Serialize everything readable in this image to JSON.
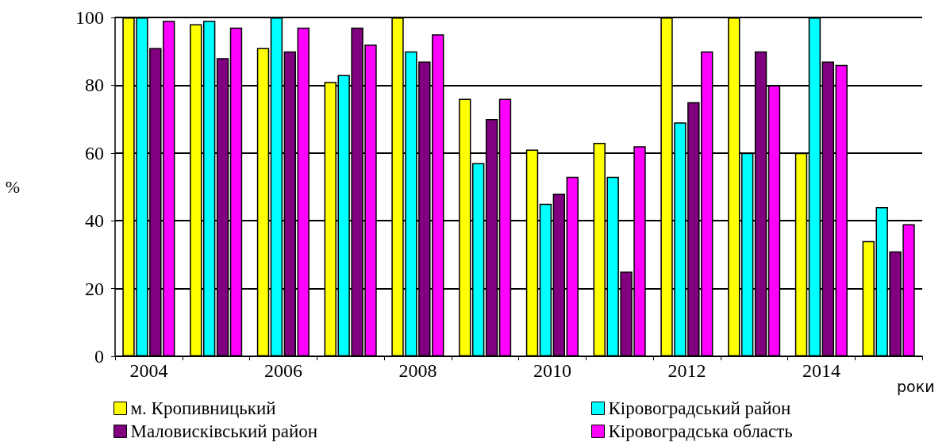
{
  "chart_data": {
    "type": "bar",
    "xlabel": "роки",
    "ylabel": "%",
    "categories": [
      "2004",
      null,
      "2006",
      null,
      "2008",
      null,
      "2010",
      null,
      "2012",
      null,
      "2014",
      null
    ],
    "series": [
      {
        "name": "м. Кропивницький",
        "color": "#ffff00",
        "values": [
          100,
          98,
          91,
          81,
          100,
          76,
          61,
          63,
          100,
          100,
          60,
          34
        ]
      },
      {
        "name": "Кіровоградський район",
        "color": "#00ffff",
        "values": [
          100,
          99,
          100,
          83,
          90,
          57,
          45,
          53,
          69,
          60,
          100,
          44
        ]
      },
      {
        "name": "Маловисківський район",
        "color": "#800080",
        "values": [
          91,
          88,
          90,
          97,
          87,
          70,
          48,
          25,
          75,
          90,
          87,
          31
        ]
      },
      {
        "name": "Кіровоградська область",
        "color": "#ff00ff",
        "values": [
          99,
          97,
          97,
          92,
          95,
          76,
          53,
          62,
          90,
          80,
          86,
          39
        ]
      }
    ],
    "ylim": [
      0,
      100
    ],
    "yticks": [
      0,
      20,
      40,
      60,
      80,
      100
    ],
    "grid": "y",
    "legend": "bottom"
  }
}
